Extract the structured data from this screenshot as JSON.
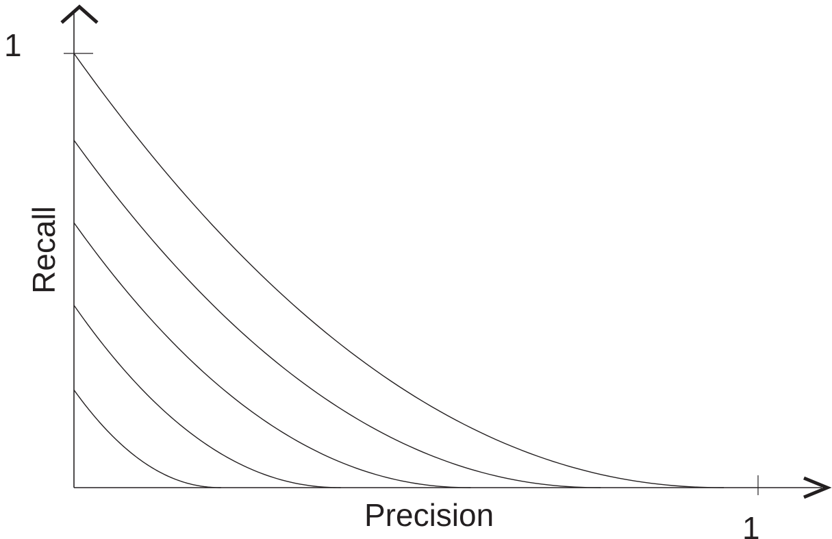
{
  "chart_data": {
    "type": "line",
    "xlabel": "Precision",
    "ylabel": "Recall",
    "xlim": [
      0,
      1
    ],
    "ylim": [
      0,
      1
    ],
    "x_tick_labels": [
      "1"
    ],
    "y_tick_labels": [
      "1"
    ],
    "grid": false,
    "legend": "none",
    "colors": {
      "ink": "#231f20",
      "background": "#ffffff"
    },
    "series": [
      {
        "x_intercept": 0.95,
        "y_intercept": 1.0
      },
      {
        "x_intercept": 0.77,
        "y_intercept": 0.8
      },
      {
        "x_intercept": 0.58,
        "y_intercept": 0.61
      },
      {
        "x_intercept": 0.39,
        "y_intercept": 0.42
      },
      {
        "x_intercept": 0.215,
        "y_intercept": 0.225
      }
    ]
  }
}
